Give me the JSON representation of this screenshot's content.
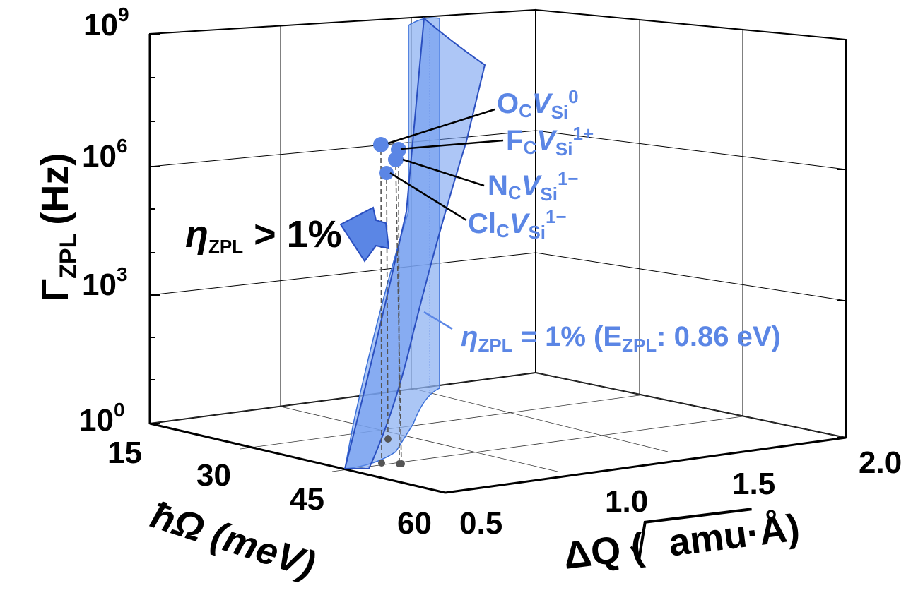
{
  "chart_data": {
    "type": "surface3d",
    "axes": {
      "z": {
        "label": "Γ",
        "label_sub": "ZPL",
        "unit": "(Hz)",
        "scale": "log",
        "ticks": [
          {
            "base": "10",
            "exp": "0"
          },
          {
            "base": "10",
            "exp": "3"
          },
          {
            "base": "10",
            "exp": "6"
          },
          {
            "base": "10",
            "exp": "9"
          }
        ]
      },
      "hw": {
        "label": "ħΩ (meV)",
        "ticks": [
          "15",
          "30",
          "45",
          "60"
        ]
      },
      "dq": {
        "label_prefix": "ΔQ (",
        "label_radicand": "amu·Å",
        "label_suffix": ")",
        "ticks": [
          "0.5",
          "1.0",
          "1.5",
          "2.0"
        ]
      }
    },
    "surface": {
      "label_pre": "η",
      "label_sub": "ZPL",
      "label_post": " = 1% (E",
      "label_sub2": "ZPL",
      "label_end": ": 0.86 eV)",
      "color": "#5b86e5"
    },
    "region_arrow": {
      "pre": "η",
      "sub": "ZPL",
      "post": " > 1%"
    },
    "points": [
      {
        "base": "O",
        "sub": "C",
        "v": "V",
        "vsub": "Si",
        "sup": "0",
        "log_gamma": 6.2,
        "hw": 43,
        "dq": 0.62
      },
      {
        "base": "F",
        "sub": "C",
        "v": "V",
        "vsub": "Si",
        "sup": "1+",
        "log_gamma": 6.1,
        "hw": 44,
        "dq": 0.65
      },
      {
        "base": "N",
        "sub": "C",
        "v": "V",
        "vsub": "Si",
        "sup": "1−",
        "log_gamma": 6.0,
        "hw": 44,
        "dq": 0.66
      },
      {
        "base": "Cl",
        "sub": "C",
        "v": "V",
        "vsub": "Si",
        "sup": "1−",
        "log_gamma": 5.6,
        "hw": 41,
        "dq": 0.6
      }
    ],
    "grid": true
  }
}
